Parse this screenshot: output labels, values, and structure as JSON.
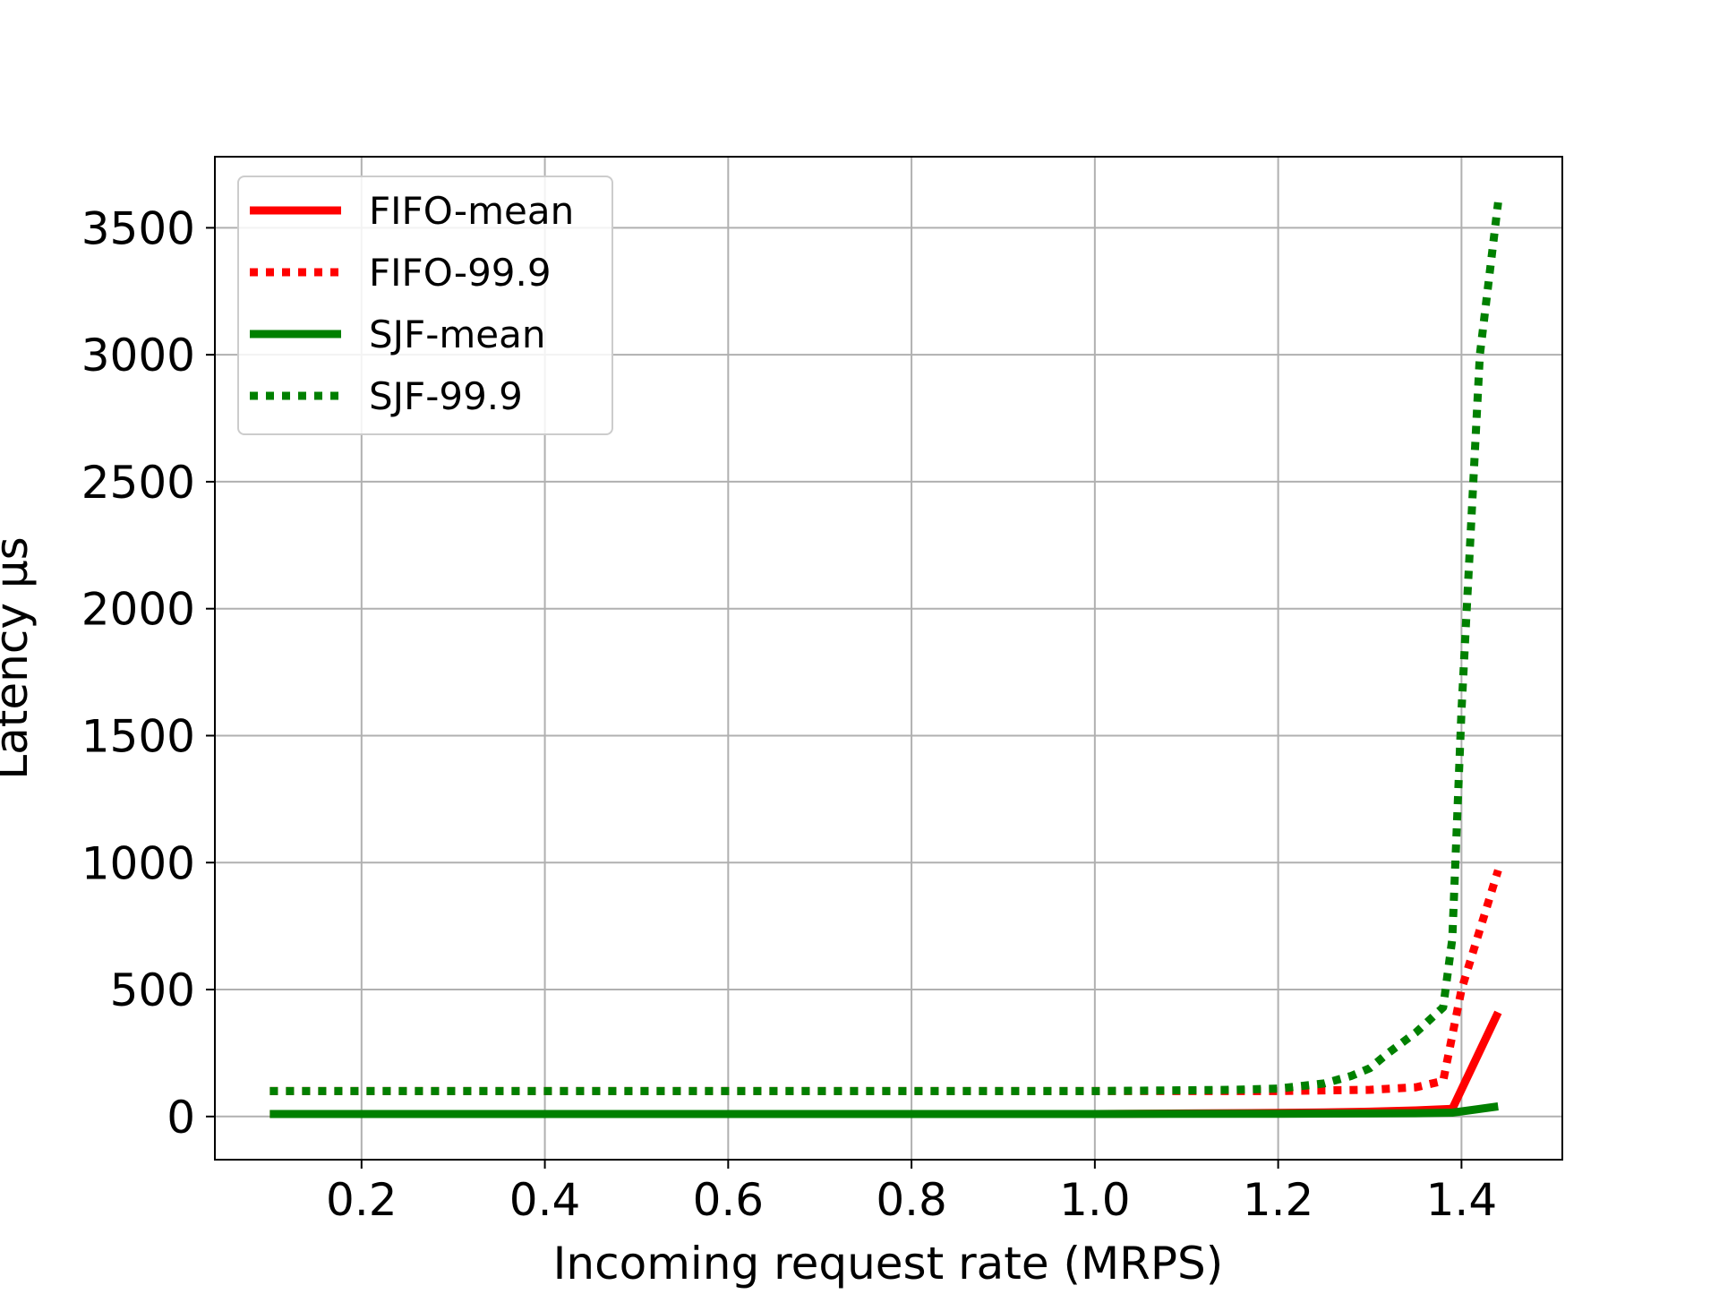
{
  "chart_data": {
    "type": "line",
    "title": "",
    "xlabel": "Incoming request rate (MRPS)",
    "ylabel": "Latency μs",
    "xlim": [
      0.04,
      1.51
    ],
    "ylim": [
      -170,
      3780
    ],
    "xticks": [
      0.2,
      0.4,
      0.6,
      0.8,
      1.0,
      1.2,
      1.4
    ],
    "xtick_labels": [
      "0.2",
      "0.4",
      "0.6",
      "0.8",
      "1.0",
      "1.2",
      "1.4"
    ],
    "yticks": [
      0,
      500,
      1000,
      1500,
      2000,
      2500,
      3000,
      3500
    ],
    "ytick_labels": [
      "0",
      "500",
      "1000",
      "1500",
      "2000",
      "2500",
      "3000",
      "3500"
    ],
    "grid": true,
    "legend_position": "upper-left",
    "series": [
      {
        "name": "FIFO-mean",
        "color": "#ff0000",
        "style": "solid",
        "x": [
          0.1,
          0.2,
          0.4,
          0.6,
          0.8,
          1.0,
          1.1,
          1.2,
          1.25,
          1.3,
          1.35,
          1.39,
          1.44
        ],
        "y": [
          10,
          10,
          10,
          10,
          10,
          10,
          12,
          14,
          16,
          19,
          24,
          30,
          410
        ]
      },
      {
        "name": "FIFO-99.9",
        "color": "#ff0000",
        "style": "dotted",
        "x": [
          0.1,
          0.2,
          0.4,
          0.6,
          0.8,
          1.0,
          1.1,
          1.2,
          1.3,
          1.35,
          1.38,
          1.4,
          1.44
        ],
        "y": [
          100,
          100,
          100,
          100,
          100,
          100,
          100,
          100,
          105,
          115,
          140,
          500,
          970
        ]
      },
      {
        "name": "SJF-mean",
        "color": "#008000",
        "style": "solid",
        "x": [
          0.1,
          0.2,
          0.4,
          0.6,
          0.8,
          1.0,
          1.2,
          1.3,
          1.35,
          1.39,
          1.44
        ],
        "y": [
          10,
          10,
          10,
          10,
          10,
          10,
          11,
          12,
          13,
          15,
          40
        ]
      },
      {
        "name": "SJF-99.9",
        "color": "#008000",
        "style": "dotted",
        "x": [
          0.1,
          0.2,
          0.4,
          0.6,
          0.8,
          1.0,
          1.15,
          1.2,
          1.25,
          1.28,
          1.3,
          1.32,
          1.35,
          1.38,
          1.39,
          1.4,
          1.42,
          1.44
        ],
        "y": [
          100,
          100,
          100,
          100,
          100,
          100,
          105,
          110,
          130,
          160,
          190,
          250,
          330,
          430,
          700,
          1600,
          3000,
          3600
        ]
      }
    ]
  }
}
